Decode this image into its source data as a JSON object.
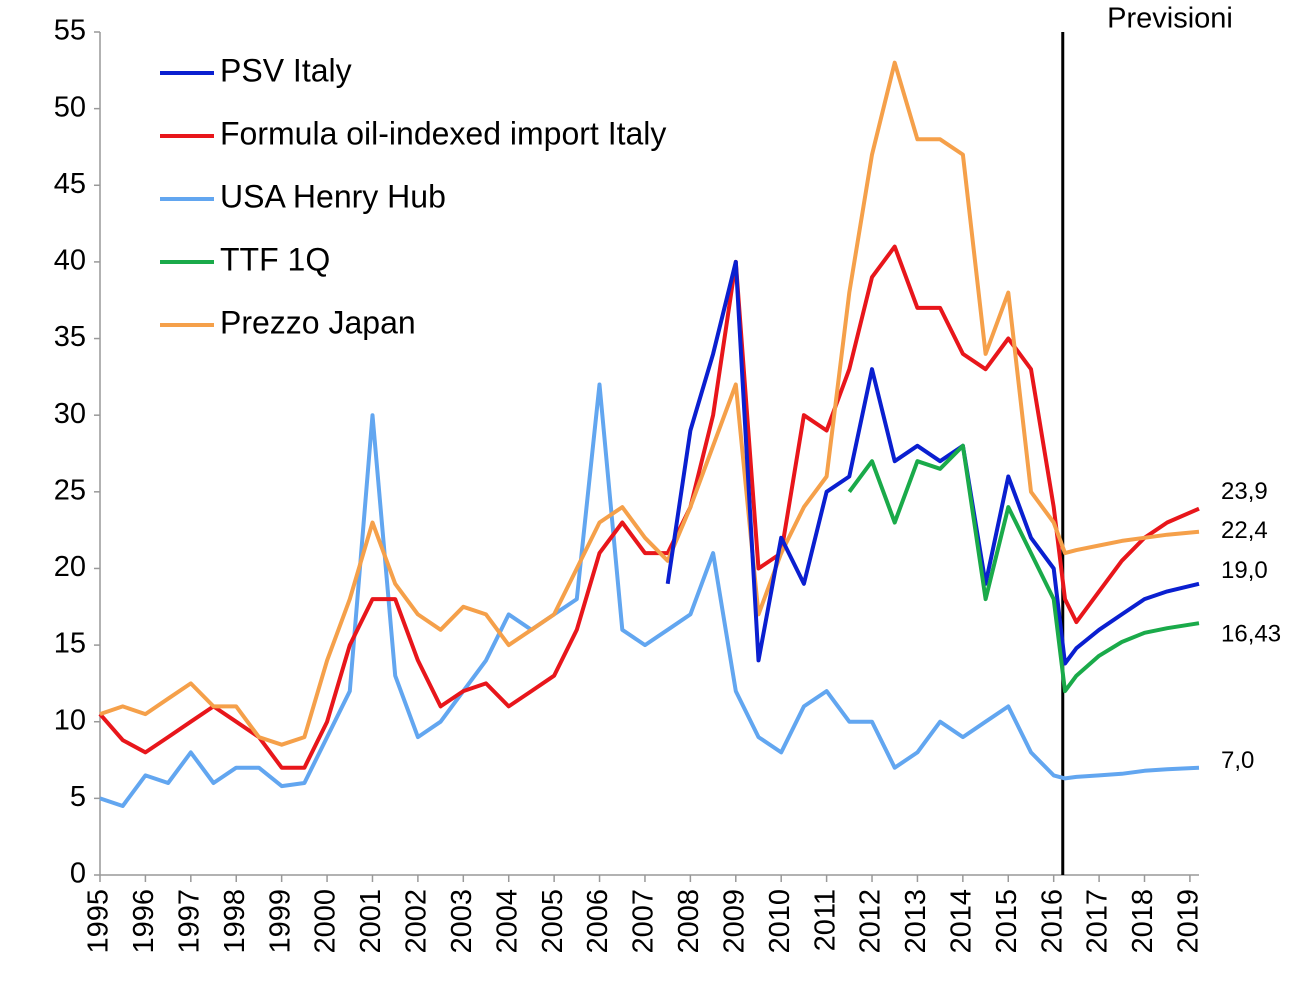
{
  "chart_data": {
    "type": "line",
    "annotation": "Previsioni",
    "forecast_x": 2016.2,
    "xlim": [
      1995,
      2019.2
    ],
    "xticks": [
      1995,
      1996,
      1997,
      1998,
      1999,
      2000,
      2001,
      2002,
      2003,
      2004,
      2005,
      2006,
      2007,
      2008,
      2009,
      2010,
      2011,
      2012,
      2013,
      2014,
      2015,
      2016,
      2017,
      2018,
      2019
    ],
    "ylim": [
      0,
      55
    ],
    "yticks": [
      0,
      5,
      10,
      15,
      20,
      25,
      30,
      35,
      40,
      45,
      50,
      55
    ],
    "x": [
      1995.0,
      1995.5,
      1996.0,
      1996.5,
      1997.0,
      1997.5,
      1998.0,
      1998.5,
      1999.0,
      1999.5,
      2000.0,
      2000.5,
      2001.0,
      2001.5,
      2002.0,
      2002.5,
      2003.0,
      2003.5,
      2004.0,
      2004.5,
      2005.0,
      2005.5,
      2006.0,
      2006.5,
      2007.0,
      2007.5,
      2008.0,
      2008.5,
      2009.0,
      2009.5,
      2010.0,
      2010.5,
      2011.0,
      2011.5,
      2012.0,
      2012.5,
      2013.0,
      2013.5,
      2014.0,
      2014.5,
      2015.0,
      2015.5,
      2016.0,
      2016.25,
      2016.5,
      2017.0,
      2017.5,
      2018.0,
      2018.5,
      2019.2
    ],
    "series": [
      {
        "name": "PSV Italy",
        "color": "#0a1fd0",
        "values": [
          null,
          null,
          null,
          null,
          null,
          null,
          null,
          null,
          null,
          null,
          null,
          null,
          null,
          null,
          null,
          null,
          null,
          null,
          null,
          null,
          null,
          null,
          null,
          null,
          null,
          19,
          29,
          34,
          40,
          14,
          22,
          19,
          25,
          26,
          33,
          27,
          28,
          27,
          28,
          19,
          26,
          22,
          20,
          13.8,
          14.8,
          16,
          17,
          18,
          18.5,
          19.0
        ],
        "value_labels": [
          null,
          null,
          null,
          null,
          null,
          null,
          null,
          null,
          null,
          null,
          null,
          null,
          null,
          null,
          null,
          null,
          null,
          null,
          null,
          null,
          null,
          null,
          null,
          null,
          null,
          null,
          null,
          null,
          null,
          null,
          null,
          null,
          null,
          null,
          null,
          null,
          null,
          null,
          null,
          null,
          null,
          null,
          null,
          null,
          null,
          null,
          null,
          null,
          null,
          "19,0"
        ]
      },
      {
        "name": "Formula oil-indexed import Italy",
        "color": "#e8161b",
        "values": [
          10.5,
          8.8,
          8,
          9,
          10,
          11,
          10,
          9,
          7,
          7,
          10,
          15,
          18,
          18,
          14,
          11,
          12,
          12.5,
          11,
          12,
          13,
          16,
          21,
          23,
          21,
          21,
          24,
          30,
          40,
          20,
          21,
          30,
          29,
          33,
          39,
          41,
          37,
          37,
          34,
          33,
          35,
          33,
          24,
          18,
          16.5,
          18.5,
          20.5,
          22,
          23,
          23.9
        ],
        "value_labels": [
          null,
          null,
          null,
          null,
          null,
          null,
          null,
          null,
          null,
          null,
          null,
          null,
          null,
          null,
          null,
          null,
          null,
          null,
          null,
          null,
          null,
          null,
          null,
          null,
          null,
          null,
          null,
          null,
          null,
          null,
          null,
          null,
          null,
          null,
          null,
          null,
          null,
          null,
          null,
          null,
          null,
          null,
          null,
          null,
          null,
          null,
          null,
          null,
          null,
          "23,9"
        ]
      },
      {
        "name": "USA Henry Hub",
        "color": "#62a6f0",
        "values": [
          5,
          4.5,
          6.5,
          6,
          8,
          6,
          7,
          7,
          5.8,
          6,
          9,
          12,
          30,
          13,
          9,
          10,
          12,
          14,
          17,
          16,
          17,
          18,
          32,
          16,
          15,
          16,
          17,
          21,
          12,
          9,
          8,
          11,
          12,
          10,
          10,
          7,
          8,
          10,
          9,
          10,
          11,
          8,
          6.5,
          6.3,
          6.4,
          6.5,
          6.6,
          6.8,
          6.9,
          7.0
        ],
        "value_labels": [
          null,
          null,
          null,
          null,
          null,
          null,
          null,
          null,
          null,
          null,
          null,
          null,
          null,
          null,
          null,
          null,
          null,
          null,
          null,
          null,
          null,
          null,
          null,
          null,
          null,
          null,
          null,
          null,
          null,
          null,
          null,
          null,
          null,
          null,
          null,
          null,
          null,
          null,
          null,
          null,
          null,
          null,
          null,
          null,
          null,
          null,
          null,
          null,
          null,
          "7,0"
        ]
      },
      {
        "name": "TTF 1Q",
        "color": "#1aaa4a",
        "values": [
          null,
          null,
          null,
          null,
          null,
          null,
          null,
          null,
          null,
          null,
          null,
          null,
          null,
          null,
          null,
          null,
          null,
          null,
          null,
          null,
          null,
          null,
          null,
          null,
          null,
          null,
          null,
          null,
          null,
          null,
          null,
          null,
          null,
          25,
          27,
          23,
          27,
          26.5,
          28,
          18,
          24,
          21,
          18,
          12,
          13,
          14.3,
          15.2,
          15.8,
          16.1,
          16.43
        ],
        "value_labels": [
          null,
          null,
          null,
          null,
          null,
          null,
          null,
          null,
          null,
          null,
          null,
          null,
          null,
          null,
          null,
          null,
          null,
          null,
          null,
          null,
          null,
          null,
          null,
          null,
          null,
          null,
          null,
          null,
          null,
          null,
          null,
          null,
          null,
          null,
          null,
          null,
          null,
          null,
          null,
          null,
          null,
          null,
          null,
          null,
          null,
          null,
          null,
          null,
          null,
          "16,43"
        ]
      },
      {
        "name": "Prezzo Japan",
        "color": "#f5a04a",
        "values": [
          10.5,
          11,
          10.5,
          11.5,
          12.5,
          11,
          11,
          9,
          8.5,
          9,
          14,
          18,
          23,
          19,
          17,
          16,
          17.5,
          17,
          15,
          16,
          17,
          20,
          23,
          24,
          22,
          20.5,
          24,
          28,
          32,
          17,
          21,
          24,
          26,
          38,
          47,
          53,
          48,
          48,
          47,
          34,
          38,
          25,
          23,
          21,
          21.2,
          21.5,
          21.8,
          22,
          22.2,
          22.4
        ],
        "value_labels": [
          null,
          null,
          null,
          null,
          null,
          null,
          null,
          null,
          null,
          null,
          null,
          null,
          null,
          null,
          null,
          null,
          null,
          null,
          null,
          null,
          null,
          null,
          null,
          null,
          null,
          null,
          null,
          null,
          null,
          null,
          null,
          null,
          null,
          null,
          null,
          null,
          null,
          null,
          null,
          null,
          null,
          null,
          null,
          null,
          null,
          null,
          null,
          null,
          null,
          "22,4"
        ]
      }
    ]
  }
}
